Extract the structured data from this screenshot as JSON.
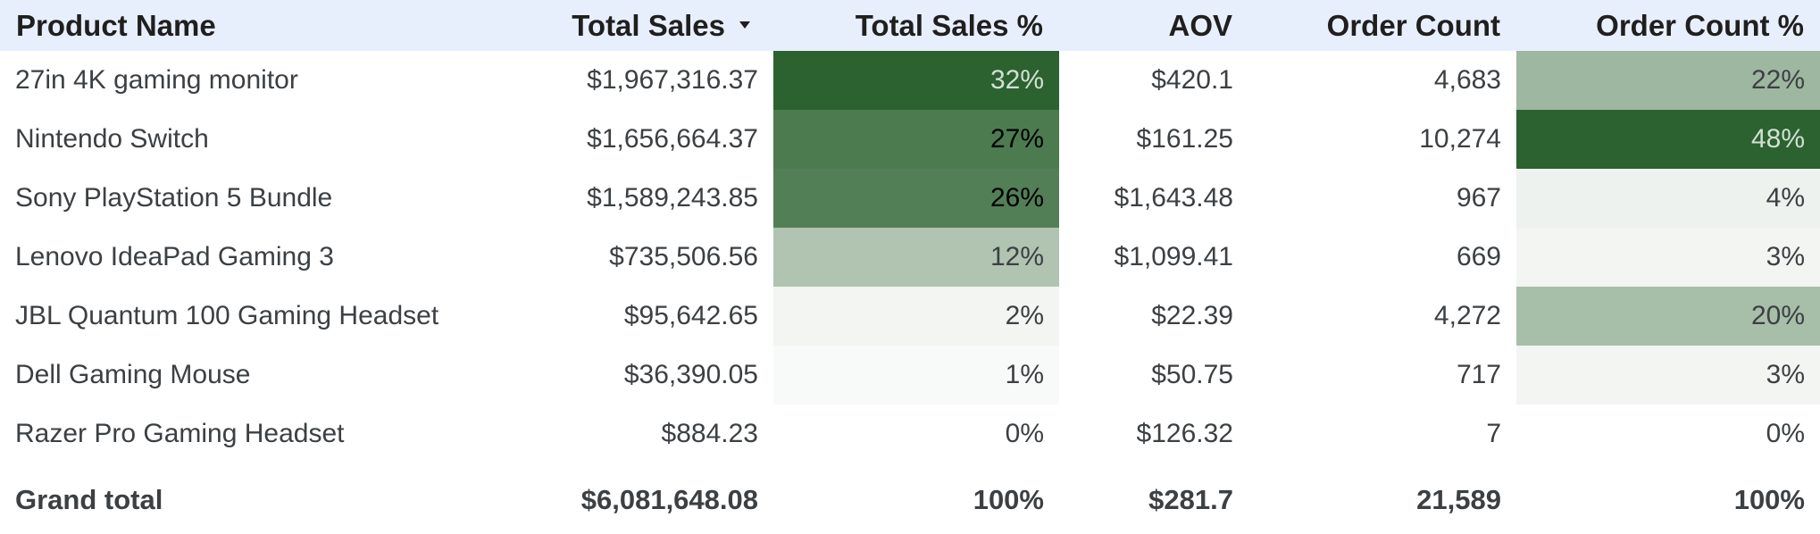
{
  "chart_data": {
    "type": "table",
    "columns": [
      "Product Name",
      "Total Sales",
      "Total Sales %",
      "AOV",
      "Order Count",
      "Order Count %"
    ],
    "sorted_column": "Total Sales",
    "sort_direction": "descending",
    "rows": [
      {
        "product": "27in 4K gaming monitor",
        "total_sales": "$1,967,316.37",
        "total_sales_pct": "32%",
        "total_sales_pct_value": 32,
        "aov": "$420.1",
        "order_count": "4,683",
        "order_count_pct": "22%",
        "order_count_pct_value": 22
      },
      {
        "product": "Nintendo Switch",
        "total_sales": "$1,656,664.37",
        "total_sales_pct": "27%",
        "total_sales_pct_value": 27,
        "aov": "$161.25",
        "order_count": "10,274",
        "order_count_pct": "48%",
        "order_count_pct_value": 48
      },
      {
        "product": "Sony PlayStation 5 Bundle",
        "total_sales": "$1,589,243.85",
        "total_sales_pct": "26%",
        "total_sales_pct_value": 26,
        "aov": "$1,643.48",
        "order_count": "967",
        "order_count_pct": "4%",
        "order_count_pct_value": 4
      },
      {
        "product": "Lenovo IdeaPad Gaming 3",
        "total_sales": "$735,506.56",
        "total_sales_pct": "12%",
        "total_sales_pct_value": 12,
        "aov": "$1,099.41",
        "order_count": "669",
        "order_count_pct": "3%",
        "order_count_pct_value": 3
      },
      {
        "product": "JBL Quantum 100 Gaming Headset",
        "total_sales": "$95,642.65",
        "total_sales_pct": "2%",
        "total_sales_pct_value": 2,
        "aov": "$22.39",
        "order_count": "4,272",
        "order_count_pct": "20%",
        "order_count_pct_value": 20
      },
      {
        "product": "Dell Gaming Mouse",
        "total_sales": "$36,390.05",
        "total_sales_pct": "1%",
        "total_sales_pct_value": 1,
        "aov": "$50.75",
        "order_count": "717",
        "order_count_pct": "3%",
        "order_count_pct_value": 3
      },
      {
        "product": "Razer Pro Gaming Headset",
        "total_sales": "$884.23",
        "total_sales_pct": "0%",
        "total_sales_pct_value": 0,
        "aov": "$126.32",
        "order_count": "7",
        "order_count_pct": "0%",
        "order_count_pct_value": 0
      }
    ],
    "grand_total": {
      "label": "Grand total",
      "total_sales": "$6,081,648.08",
      "total_sales_pct": "100%",
      "aov": "$281.7",
      "order_count": "21,589",
      "order_count_pct": "100%"
    }
  },
  "colors": {
    "header_background": "#e8effc",
    "heatmap_dark": "#2b6230",
    "heatmap_light": "#ffffff",
    "text_dark": "#1f1f1f",
    "text_body": "#3c4043",
    "text_on_dark": "#d2e0d3"
  },
  "icons": {
    "sort": "sort-descending-icon"
  }
}
